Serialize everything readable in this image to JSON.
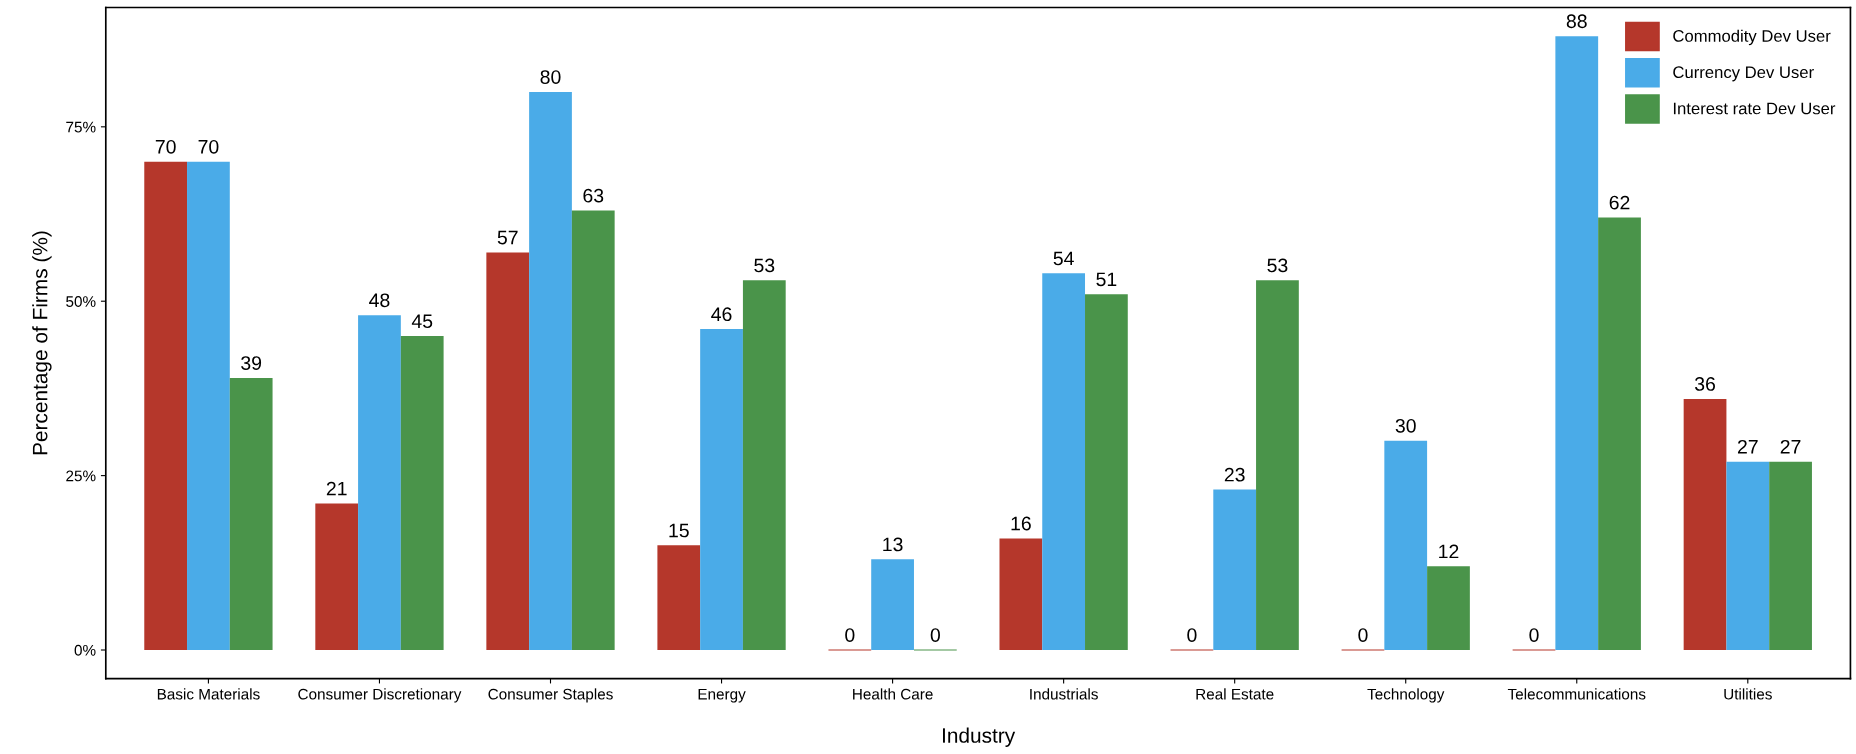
{
  "chart_data": {
    "type": "bar",
    "xlabel": "Industry",
    "ylabel": "Percentage of Firms (%)",
    "categories": [
      "Basic Materials",
      "Consumer Discretionary",
      "Consumer Staples",
      "Energy",
      "Health Care",
      "Industrials",
      "Real Estate",
      "Technology",
      "Telecommunications",
      "Utilities"
    ],
    "series": [
      {
        "name": "Commodity Dev User",
        "color": "#b5372b",
        "values": [
          70,
          21,
          57,
          15,
          0,
          16,
          0,
          0,
          0,
          36
        ]
      },
      {
        "name": "Currency Dev User",
        "color": "#4aabe8",
        "values": [
          70,
          48,
          80,
          46,
          13,
          54,
          23,
          30,
          88,
          27
        ]
      },
      {
        "name": "Interest rate Dev User",
        "color": "#4a944a",
        "values": [
          39,
          45,
          63,
          53,
          0,
          51,
          53,
          12,
          62,
          27
        ]
      }
    ],
    "ylim": [
      -4.1,
      92.1
    ],
    "yticks": [
      {
        "value": 0,
        "label": "0%"
      },
      {
        "value": 25,
        "label": "25%"
      },
      {
        "value": 50,
        "label": "50%"
      },
      {
        "value": 75,
        "label": "75%"
      }
    ],
    "data_labels": true,
    "legend": "top right",
    "grid": false
  }
}
